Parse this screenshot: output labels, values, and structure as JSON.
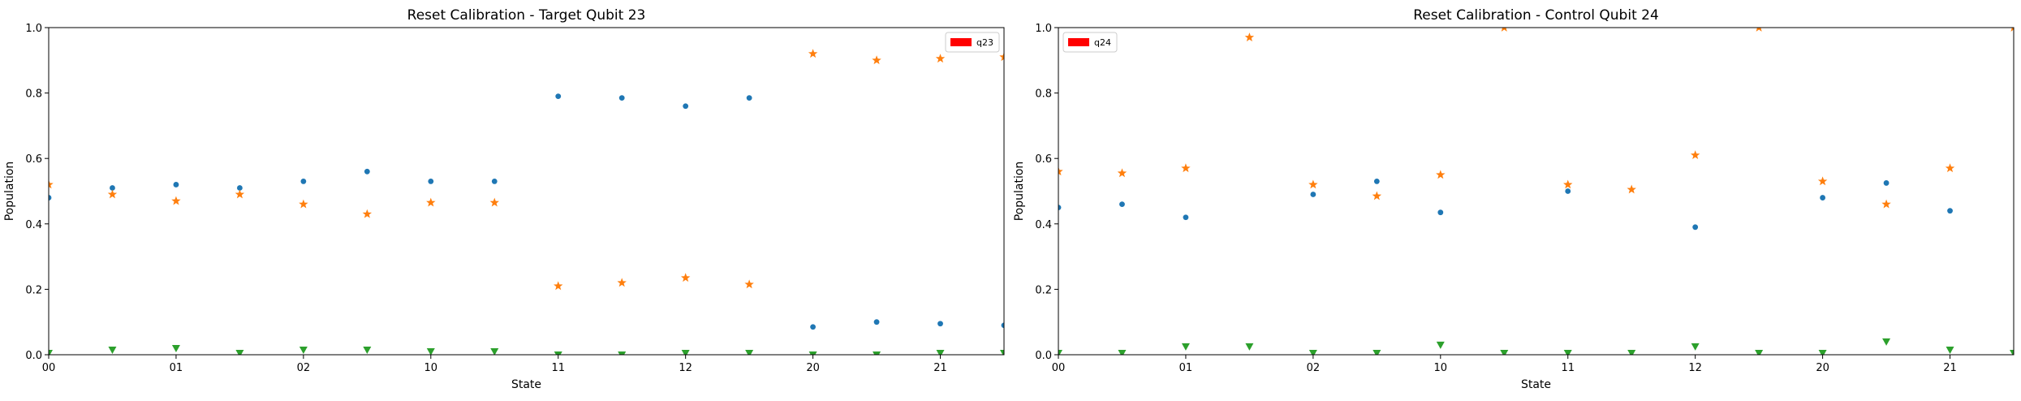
{
  "chart_data": [
    {
      "type": "scatter",
      "title": "Reset Calibration - Target Qubit 23",
      "xlabel": "State",
      "ylabel": "Population",
      "x_ticks": [
        "00",
        "01",
        "02",
        "10",
        "11",
        "12",
        "20",
        "21"
      ],
      "x_range": [
        0,
        7.5
      ],
      "ylim": [
        0,
        1.0
      ],
      "y_ticks": [
        "0.0",
        "0.2",
        "0.4",
        "0.6",
        "0.8",
        "1.0"
      ],
      "legend": [
        {
          "label": "q23",
          "color": "#ff0000"
        }
      ],
      "legend_position": "top-right",
      "x": [
        0,
        0.5,
        1,
        1.5,
        2,
        2.5,
        3,
        3.5,
        4,
        4.5,
        5,
        5.5,
        6,
        6.5,
        7,
        7.5
      ],
      "series": [
        {
          "marker": "dot",
          "color": "#1f77b4",
          "values": [
            0.48,
            0.51,
            0.52,
            0.51,
            0.53,
            0.56,
            0.53,
            0.53,
            0.79,
            0.785,
            0.76,
            0.785,
            0.085,
            0.1,
            0.095,
            0.09
          ]
        },
        {
          "marker": "star",
          "color": "#ff7f0e",
          "values": [
            0.52,
            0.49,
            0.47,
            0.49,
            0.46,
            0.43,
            0.465,
            0.465,
            0.21,
            0.22,
            0.235,
            0.215,
            0.92,
            0.9,
            0.905,
            0.91
          ]
        },
        {
          "marker": "triangle",
          "color": "#2ca02c",
          "values": [
            0.005,
            0.015,
            0.02,
            0.005,
            0.015,
            0.015,
            0.01,
            0.01,
            0.0,
            0.0,
            0.005,
            0.005,
            0.0,
            0.0,
            0.005,
            0.005
          ]
        }
      ]
    },
    {
      "type": "scatter",
      "title": "Reset Calibration - Control Qubit 24",
      "xlabel": "State",
      "ylabel": "Population",
      "x_ticks": [
        "00",
        "01",
        "02",
        "10",
        "11",
        "12",
        "20",
        "21"
      ],
      "x_range": [
        0,
        7.5
      ],
      "ylim": [
        0,
        1.0
      ],
      "y_ticks": [
        "0.0",
        "0.2",
        "0.4",
        "0.6",
        "0.8",
        "1.0"
      ],
      "legend": [
        {
          "label": "q24",
          "color": "#ff0000"
        }
      ],
      "legend_position": "top-left",
      "x": [
        0,
        0.5,
        1,
        1.5,
        2,
        2.5,
        3,
        3.5,
        4,
        4.5,
        5,
        5.5,
        6,
        6.5,
        7,
        7.5
      ],
      "series": [
        {
          "marker": "dot",
          "color": "#1f77b4",
          "values": [
            0.45,
            0.46,
            0.42,
            null,
            0.49,
            0.53,
            0.435,
            null,
            0.5,
            null,
            0.39,
            null,
            0.48,
            0.525,
            0.44,
            null
          ]
        },
        {
          "marker": "star",
          "color": "#ff7f0e",
          "values": [
            0.56,
            0.555,
            0.57,
            0.97,
            0.52,
            0.485,
            0.55,
            1.0,
            0.52,
            0.505,
            0.61,
            1.0,
            0.53,
            0.46,
            0.57,
            1.0
          ]
        },
        {
          "marker": "triangle",
          "color": "#2ca02c",
          "values": [
            0.005,
            0.005,
            0.025,
            0.025,
            0.005,
            0.005,
            0.03,
            0.005,
            0.005,
            0.005,
            0.025,
            0.005,
            0.005,
            0.04,
            0.015,
            0.005
          ]
        }
      ]
    }
  ]
}
